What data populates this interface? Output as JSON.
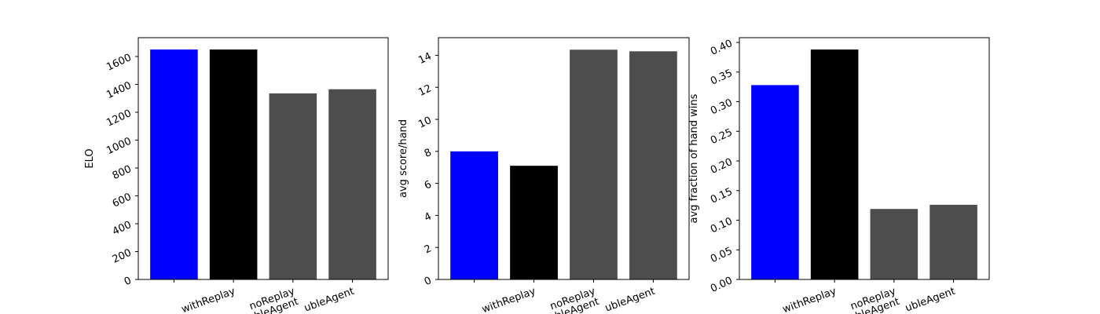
{
  "chart_data": [
    {
      "type": "bar",
      "categories": [
        "",
        "withReplay",
        "noReplay\nubleAgent",
        "ubleAgent"
      ],
      "values": [
        1650,
        1650,
        1335,
        1365
      ],
      "colors": [
        "#0000ff",
        "#000000",
        "#4d4d4d",
        "#4d4d4d"
      ],
      "title": "",
      "xlabel": "",
      "ylabel": "ELO",
      "ylim": [
        0,
        1735
      ],
      "yticks": [
        0,
        200,
        400,
        600,
        800,
        1000,
        1200,
        1400,
        1600
      ],
      "ytick_labels": [
        "0",
        "200",
        "400",
        "600",
        "800",
        "1000",
        "1200",
        "1400",
        "1600"
      ],
      "grid": false
    },
    {
      "type": "bar",
      "categories": [
        "",
        "withReplay",
        "noReplay\nubleAgent",
        "ubleAgent"
      ],
      "values": [
        8.0,
        7.1,
        14.35,
        14.25
      ],
      "colors": [
        "#0000ff",
        "#000000",
        "#4d4d4d",
        "#4d4d4d"
      ],
      "title": "",
      "xlabel": "",
      "ylabel": "avg score/hand",
      "ylim": [
        0,
        15.1
      ],
      "yticks": [
        0,
        2,
        4,
        6,
        8,
        10,
        12,
        14
      ],
      "ytick_labels": [
        "0",
        "2",
        "4",
        "6",
        "8",
        "10",
        "12",
        "14"
      ],
      "grid": false
    },
    {
      "type": "bar",
      "categories": [
        "",
        "withReplay",
        "noReplay\nubleAgent",
        "ubleAgent"
      ],
      "values": [
        0.328,
        0.388,
        0.119,
        0.126
      ],
      "colors": [
        "#0000ff",
        "#000000",
        "#4d4d4d",
        "#4d4d4d"
      ],
      "title": "",
      "xlabel": "",
      "ylabel": "avg fraction of hand wins",
      "ylim": [
        0,
        0.408
      ],
      "yticks": [
        0,
        0.05,
        0.1,
        0.15,
        0.2,
        0.25,
        0.3,
        0.35,
        0.4
      ],
      "ytick_labels": [
        "0.00",
        "0.05",
        "0.10",
        "0.15",
        "0.20",
        "0.25",
        "0.30",
        "0.35",
        "0.40"
      ],
      "grid": false
    }
  ]
}
